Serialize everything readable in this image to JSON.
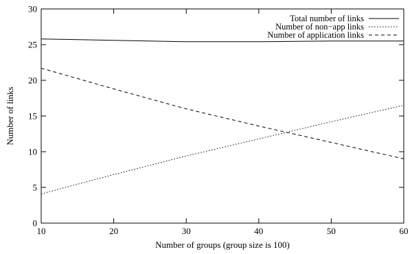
{
  "chart_data": {
    "type": "line",
    "title": "",
    "xlabel": "Number of groups (group size is 100)",
    "ylabel": "Number of links",
    "xlim": [
      10,
      60
    ],
    "ylim": [
      0,
      30
    ],
    "xticks": [
      10,
      20,
      30,
      40,
      50,
      60
    ],
    "yticks": [
      0,
      5,
      10,
      15,
      20,
      25,
      30
    ],
    "grid": false,
    "legend_position": "top-right",
    "series": [
      {
        "name": "Total number of links",
        "style": "solid",
        "x": [
          10,
          20,
          30,
          40,
          50,
          60
        ],
        "y": [
          25.8,
          25.6,
          25.4,
          25.4,
          25.5,
          25.5
        ]
      },
      {
        "name": "Number of non−app links",
        "style": "dotted",
        "x": [
          10,
          20,
          30,
          40,
          50,
          60
        ],
        "y": [
          4.1,
          6.8,
          9.4,
          11.8,
          14.2,
          16.5
        ]
      },
      {
        "name": "Number of application links",
        "style": "dashed",
        "x": [
          10,
          20,
          30,
          40,
          50,
          60
        ],
        "y": [
          21.7,
          18.8,
          16.0,
          13.6,
          11.3,
          9.0
        ]
      }
    ]
  }
}
